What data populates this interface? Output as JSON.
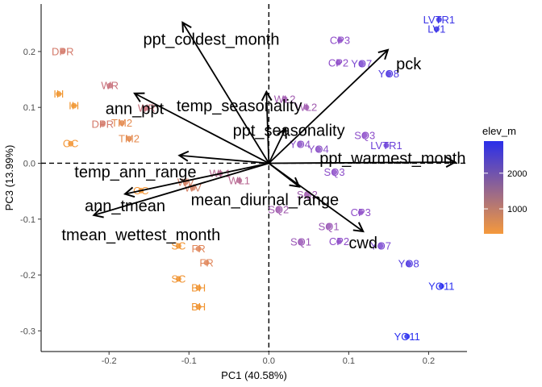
{
  "chart_data": {
    "type": "scatter",
    "xlabel": "PC1 (40.58%)",
    "ylabel": "PC3 (13.99%)",
    "xlim": [
      -0.285,
      0.248
    ],
    "ylim": [
      -0.337,
      0.285
    ],
    "x_ticks": [
      -0.2,
      -0.1,
      0.0,
      0.1,
      0.2
    ],
    "x_tick_labels": [
      "-0.2",
      "-0.1",
      "0.0",
      "0.1",
      "0.2"
    ],
    "y_ticks": [
      -0.3,
      -0.2,
      -0.1,
      0.0,
      0.1,
      0.2
    ],
    "y_tick_labels": [
      "-0.3",
      "-0.2",
      "-0.1",
      "0.0",
      "0.1",
      "0.2"
    ],
    "grid": false,
    "reference_lines": {
      "x": 0,
      "y": 0,
      "style": "dashed"
    },
    "legend": {
      "title": "elev_m",
      "placement": "right",
      "type": "colorbar",
      "low_color": "#f5993c",
      "high_color": "#2a2eea",
      "range": [
        300,
        2900
      ],
      "ticks": [
        1000,
        2000
      ],
      "tick_labels": [
        "1000",
        "2000"
      ]
    },
    "points": [
      {
        "label": "DPR",
        "x": -0.258,
        "y": 0.2,
        "color": "#d3796a"
      },
      {
        "label": "IH",
        "x": -0.263,
        "y": 0.124,
        "color": "#f0952f"
      },
      {
        "label": "IH",
        "x": -0.244,
        "y": 0.103,
        "color": "#f0952f"
      },
      {
        "label": "WR",
        "x": -0.199,
        "y": 0.139,
        "color": "#c8717b"
      },
      {
        "label": "WR",
        "x": -0.153,
        "y": 0.099,
        "color": "#c8717b"
      },
      {
        "label": "DPR",
        "x": -0.208,
        "y": 0.07,
        "color": "#d3796a"
      },
      {
        "label": "TM2",
        "x": -0.184,
        "y": 0.072,
        "color": "#e48a4e"
      },
      {
        "label": "TM2",
        "x": -0.175,
        "y": 0.044,
        "color": "#e48a4e"
      },
      {
        "label": "OC",
        "x": -0.248,
        "y": 0.035,
        "color": "#f39637"
      },
      {
        "label": "OC",
        "x": -0.16,
        "y": -0.049,
        "color": "#f39637"
      },
      {
        "label": "WV",
        "x": -0.104,
        "y": -0.034,
        "color": "#d27f63"
      },
      {
        "label": "WV",
        "x": -0.095,
        "y": -0.044,
        "color": "#d27f63"
      },
      {
        "label": "WL1",
        "x": -0.061,
        "y": -0.018,
        "color": "#b76791"
      },
      {
        "label": "WL1",
        "x": -0.037,
        "y": -0.031,
        "color": "#b76791"
      },
      {
        "label": "SC",
        "x": -0.113,
        "y": -0.148,
        "color": "#f0922e"
      },
      {
        "label": "SC",
        "x": -0.113,
        "y": -0.207,
        "color": "#f0922e"
      },
      {
        "label": "FR",
        "x": -0.088,
        "y": -0.153,
        "color": "#e0865a"
      },
      {
        "label": "FR",
        "x": -0.078,
        "y": -0.178,
        "color": "#e0865a"
      },
      {
        "label": "BH",
        "x": -0.088,
        "y": -0.223,
        "color": "#f0922e"
      },
      {
        "label": "BH",
        "x": -0.088,
        "y": -0.257,
        "color": "#f0922e"
      },
      {
        "label": "WL2",
        "x": 0.02,
        "y": 0.115,
        "color": "#a15bb0"
      },
      {
        "label": "WL2",
        "x": 0.047,
        "y": 0.1,
        "color": "#a15bb0"
      },
      {
        "label": "YO4",
        "x": 0.039,
        "y": 0.034,
        "color": "#8a50c6"
      },
      {
        "label": "YO4",
        "x": 0.062,
        "y": 0.025,
        "color": "#8a50c6"
      },
      {
        "label": "SQ3",
        "x": 0.12,
        "y": 0.05,
        "color": "#8d4ec9"
      },
      {
        "label": "SQ3",
        "x": 0.082,
        "y": -0.016,
        "color": "#8d4ec9"
      },
      {
        "label": "LVTR1",
        "x": 0.147,
        "y": 0.032,
        "color": "#6a3fd8"
      },
      {
        "label": "SQ2",
        "x": 0.048,
        "y": -0.056,
        "color": "#a05aae"
      },
      {
        "label": "SQ2",
        "x": 0.012,
        "y": -0.083,
        "color": "#a05aae"
      },
      {
        "label": "SQ1",
        "x": 0.075,
        "y": -0.113,
        "color": "#9a57b6"
      },
      {
        "label": "SQ1",
        "x": 0.04,
        "y": -0.141,
        "color": "#9a57b6"
      },
      {
        "label": "CP3",
        "x": 0.089,
        "y": 0.22,
        "color": "#8e4cc8"
      },
      {
        "label": "CP3",
        "x": 0.115,
        "y": -0.088,
        "color": "#8e4cc8"
      },
      {
        "label": "CP2",
        "x": 0.087,
        "y": 0.18,
        "color": "#8e4cc8"
      },
      {
        "label": "CP2",
        "x": 0.088,
        "y": -0.14,
        "color": "#8e4cc8"
      },
      {
        "label": "YO7",
        "x": 0.116,
        "y": 0.178,
        "color": "#7a47d0"
      },
      {
        "label": "YO7",
        "x": 0.14,
        "y": -0.148,
        "color": "#7a47d0"
      },
      {
        "label": "YO8",
        "x": 0.15,
        "y": 0.16,
        "color": "#4e36e0"
      },
      {
        "label": "YO8",
        "x": 0.175,
        "y": -0.18,
        "color": "#4e36e0"
      },
      {
        "label": "LVTR1",
        "x": 0.213,
        "y": 0.257,
        "color": "#3b33e6"
      },
      {
        "label": "LV1",
        "x": 0.21,
        "y": 0.24,
        "color": "#3b33e6"
      },
      {
        "label": "YO11",
        "x": 0.216,
        "y": -0.22,
        "color": "#2a2ff0"
      },
      {
        "label": "YO11",
        "x": 0.173,
        "y": -0.31,
        "color": "#2a2ff0"
      }
    ],
    "loadings": [
      {
        "name": "ppt_coldest_month",
        "x": -0.108,
        "y": 0.252,
        "label_x": -0.072,
        "label_y": 0.222
      },
      {
        "name": "ann_ppt",
        "x": -0.168,
        "y": 0.125,
        "label_x": -0.168,
        "label_y": 0.098
      },
      {
        "name": "temp_seasonality",
        "x": -0.003,
        "y": 0.128,
        "label_x": -0.037,
        "label_y": 0.103
      },
      {
        "name": "ppt_seasonality",
        "x": 0.021,
        "y": 0.062,
        "label_x": 0.025,
        "label_y": 0.059
      },
      {
        "name": "pck",
        "x": 0.149,
        "y": 0.203,
        "label_x": 0.175,
        "label_y": 0.178
      },
      {
        "name": "ppt_warmest_month",
        "x": 0.233,
        "y": 0.002,
        "label_x": 0.155,
        "label_y": 0.009
      },
      {
        "name": "temp_ann_range",
        "x": -0.112,
        "y": 0.014,
        "label_x": -0.167,
        "label_y": -0.015
      },
      {
        "name": "ann_tmean",
        "x": -0.18,
        "y": -0.055,
        "label_x": -0.18,
        "label_y": -0.076
      },
      {
        "name": "mean_diurnal_range",
        "x": 0.038,
        "y": -0.042,
        "label_x": -0.005,
        "label_y": -0.065
      },
      {
        "name": "tmean_wettest_month",
        "x": -0.219,
        "y": -0.093,
        "label_x": -0.16,
        "label_y": -0.128
      },
      {
        "name": "cwd",
        "x": 0.118,
        "y": -0.122,
        "label_x": 0.118,
        "label_y": -0.142
      }
    ]
  }
}
